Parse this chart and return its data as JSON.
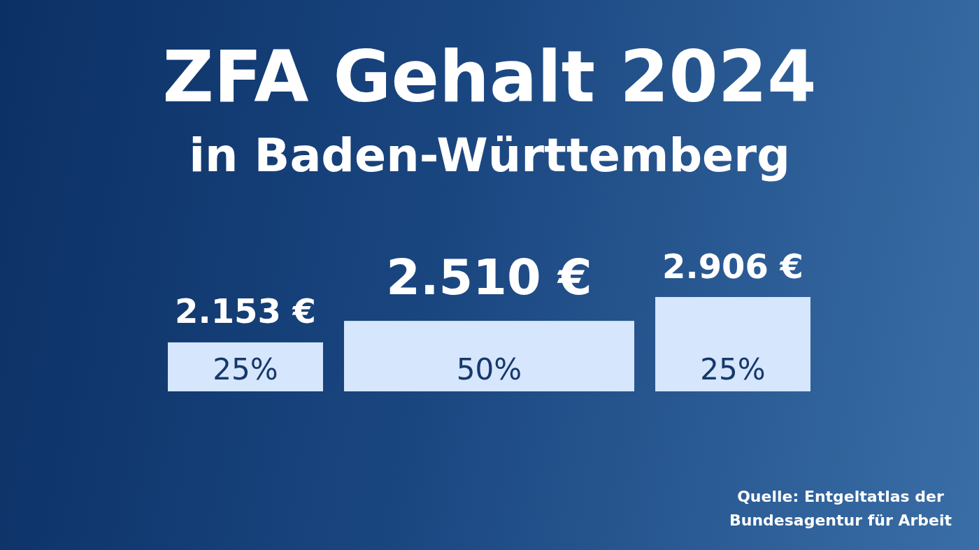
{
  "chart_data": {
    "type": "bar",
    "title": "ZFA Gehalt 2024",
    "subtitle": "in Baden-Württemberg",
    "categories": [
      "25%",
      "50%",
      "25%"
    ],
    "values": [
      2153,
      2510,
      2906
    ],
    "color": "#d6e6fc",
    "value_labels": [
      "2.153 €",
      "2.510 €",
      "2.906 €"
    ],
    "ylim": [
      1340,
      2906
    ],
    "tick_labels": "x",
    "annotations": [
      "Quelle: Entgeltatlas der Bundesagentur für Arbeit"
    ]
  }
}
